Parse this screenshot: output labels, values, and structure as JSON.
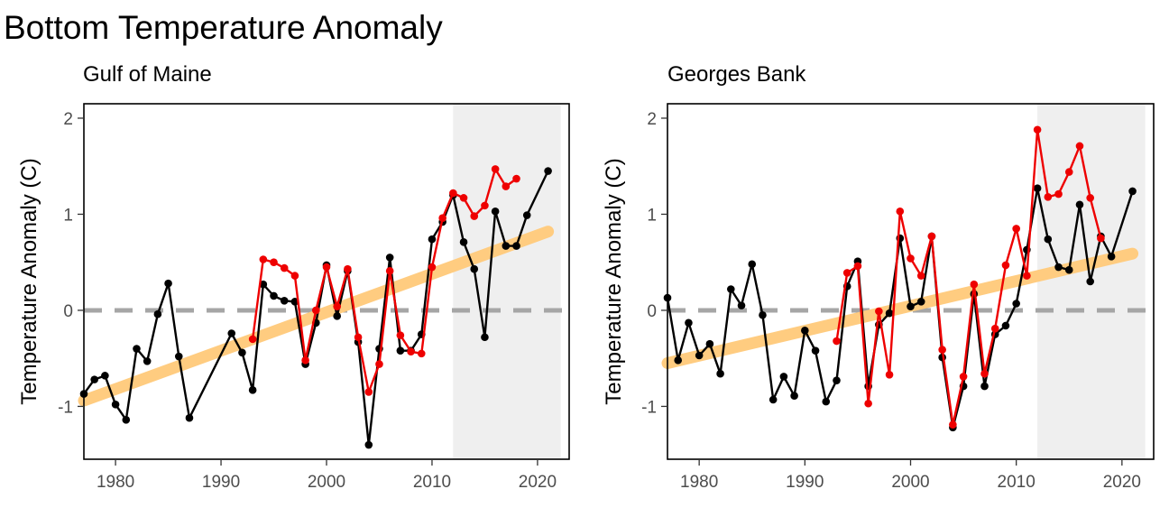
{
  "page": {
    "title": "Bottom Temperature Anomaly"
  },
  "colors": {
    "black_series": "#000000",
    "red_series": "#ee0000",
    "trend": "#ffcc80",
    "zero_line": "#a6a6a6",
    "shade": "#efefef"
  },
  "chart_data": [
    {
      "type": "line",
      "title": "Gulf of Maine",
      "xlabel": "",
      "ylabel": "Temperature Anomaly (C)",
      "xlim": [
        1977,
        2023
      ],
      "ylim": [
        -1.55,
        2.15
      ],
      "xticks": [
        1980,
        1990,
        2000,
        2010,
        2020
      ],
      "yticks": [
        -1,
        0,
        1,
        2
      ],
      "grid": false,
      "legend": "none",
      "shaded_region": {
        "x": [
          2012,
          2022.2
        ]
      },
      "reference_line": {
        "y": 0,
        "style": "dashed"
      },
      "trend_line": {
        "x": [
          1977,
          2021
        ],
        "y": [
          -0.94,
          0.82
        ]
      },
      "series": [
        {
          "color": "black",
          "x": [
            1977,
            1978,
            1979,
            1980,
            1981,
            1982,
            1983,
            1984,
            1985,
            1986,
            1987,
            1991,
            1992,
            1993,
            1994,
            1995,
            1996,
            1997,
            1998,
            1999,
            2000,
            2001,
            2002,
            2003,
            2004,
            2005,
            2006,
            2007,
            2008,
            2009,
            2010,
            2011,
            2012,
            2013,
            2014,
            2015,
            2016,
            2017,
            2018,
            2019,
            2021
          ],
          "y": [
            -0.87,
            -0.72,
            -0.68,
            -0.98,
            -1.14,
            -0.4,
            -0.53,
            -0.04,
            0.28,
            -0.48,
            -1.12,
            -0.24,
            -0.44,
            -0.83,
            0.27,
            0.15,
            0.1,
            0.09,
            -0.56,
            -0.13,
            0.47,
            -0.06,
            0.41,
            -0.33,
            -1.4,
            -0.4,
            0.55,
            -0.42,
            -0.42,
            -0.25,
            0.74,
            0.92,
            1.2,
            0.71,
            0.43,
            -0.28,
            1.03,
            0.67,
            0.67,
            0.99,
            1.45
          ]
        },
        {
          "color": "red",
          "x": [
            1993,
            1994,
            1995,
            1996,
            1997,
            1998,
            1999,
            2000,
            2001,
            2002,
            2003,
            2004,
            2005,
            2006,
            2007,
            2008,
            2009,
            2010,
            2011,
            2012,
            2013,
            2014,
            2015,
            2016,
            2017,
            2018
          ],
          "y": [
            -0.3,
            0.53,
            0.5,
            0.44,
            0.36,
            -0.52,
            0.0,
            0.45,
            0.04,
            0.43,
            -0.28,
            -0.85,
            -0.56,
            0.41,
            -0.26,
            -0.43,
            -0.45,
            0.45,
            0.96,
            1.22,
            1.17,
            0.98,
            1.09,
            1.47,
            1.29,
            1.37
          ]
        }
      ]
    },
    {
      "type": "line",
      "title": "Georges Bank",
      "xlabel": "",
      "ylabel": "Temperature Anomaly (C)",
      "xlim": [
        1977,
        2023
      ],
      "ylim": [
        -1.55,
        2.15
      ],
      "xticks": [
        1980,
        1990,
        2000,
        2010,
        2020
      ],
      "yticks": [
        -1,
        0,
        1,
        2
      ],
      "grid": false,
      "legend": "none",
      "shaded_region": {
        "x": [
          2012,
          2022.2
        ]
      },
      "reference_line": {
        "y": 0,
        "style": "dashed"
      },
      "trend_line": {
        "x": [
          1977,
          2021
        ],
        "y": [
          -0.55,
          0.59
        ]
      },
      "series": [
        {
          "color": "black",
          "x": [
            1977,
            1978,
            1979,
            1980,
            1981,
            1982,
            1983,
            1984,
            1985,
            1986,
            1987,
            1988,
            1989,
            1990,
            1991,
            1992,
            1993,
            1994,
            1995,
            1996,
            1997,
            1998,
            1999,
            2000,
            2001,
            2002,
            2003,
            2004,
            2005,
            2006,
            2007,
            2008,
            2009,
            2010,
            2011,
            2012,
            2013,
            2014,
            2015,
            2016,
            2017,
            2018,
            2019,
            2021
          ],
          "y": [
            0.13,
            -0.52,
            -0.13,
            -0.47,
            -0.35,
            -0.66,
            0.22,
            0.05,
            0.48,
            -0.05,
            -0.93,
            -0.69,
            -0.89,
            -0.21,
            -0.42,
            -0.95,
            -0.73,
            0.25,
            0.51,
            -0.79,
            -0.15,
            -0.03,
            0.75,
            0.04,
            0.09,
            0.77,
            -0.49,
            -1.22,
            -0.79,
            0.17,
            -0.79,
            -0.25,
            -0.16,
            0.07,
            0.63,
            1.27,
            0.74,
            0.45,
            0.42,
            1.1,
            0.3,
            0.77,
            0.56,
            1.24
          ]
        },
        {
          "color": "red",
          "x": [
            1993,
            1994,
            1995,
            1996,
            1997,
            1998,
            1999,
            2000,
            2001,
            2002,
            2003,
            2004,
            2005,
            2006,
            2007,
            2008,
            2009,
            2010,
            2011,
            2012,
            2013,
            2014,
            2015,
            2016,
            2017,
            2018
          ],
          "y": [
            -0.32,
            0.39,
            0.46,
            -0.97,
            -0.01,
            -0.67,
            1.03,
            0.54,
            0.36,
            0.77,
            -0.41,
            -1.19,
            -0.69,
            0.27,
            -0.66,
            -0.19,
            0.47,
            0.85,
            0.36,
            1.88,
            1.18,
            1.21,
            1.44,
            1.71,
            1.17,
            0.75
          ]
        }
      ]
    }
  ]
}
